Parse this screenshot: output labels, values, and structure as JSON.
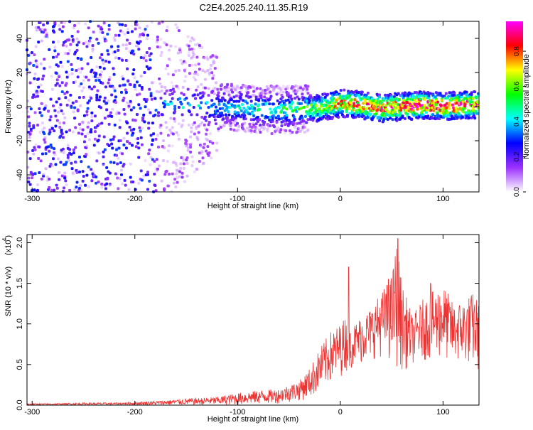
{
  "title": "C2E4.2025.240.11.35.R19",
  "chart_data": [
    {
      "type": "heatmap",
      "xlabel": "Height of straight line (km)",
      "ylabel": "Frequency (Hz)",
      "xlim": [
        -305,
        135
      ],
      "ylim": [
        -50,
        50
      ],
      "x_ticks": [
        -300,
        -200,
        -100,
        0,
        100
      ],
      "y_ticks": [
        -40,
        -20,
        0,
        20,
        40
      ],
      "colorbar": {
        "label": "Normalized spectral amplitude",
        "range": [
          0,
          0.97
        ],
        "ticks": [
          0.0,
          0.2,
          0.4,
          0.6,
          0.8
        ],
        "tick_labels": [
          "0.0",
          "0.2",
          "0.4",
          "0.6",
          "0.8"
        ],
        "colormap": [
          "#ffffff",
          "#9b30ff",
          "#0000ff",
          "#00ffff",
          "#00ff00",
          "#ffff00",
          "#ff0000",
          "#ff00ff"
        ]
      },
      "ridge_profile": {
        "x": [
          -300,
          -250,
          -200,
          -150,
          -100,
          -60,
          -20,
          0,
          20,
          40,
          60,
          80,
          100,
          120,
          135
        ],
        "center_freq": [
          0,
          0,
          0,
          1,
          -1,
          -2,
          -1,
          2,
          1,
          -1,
          0,
          1,
          0,
          1,
          1
        ],
        "peak_amplitude": [
          0.15,
          0.2,
          0.25,
          0.3,
          0.35,
          0.45,
          0.55,
          0.75,
          0.8,
          0.8,
          0.85,
          0.9,
          0.85,
          0.85,
          0.8
        ]
      }
    },
    {
      "type": "line",
      "xlabel": "Height of straight line (km)",
      "ylabel": "SNR (10 * v/v)",
      "y_multiplier": "(x10^4)",
      "xlim": [
        -305,
        135
      ],
      "ylim": [
        0,
        2.1
      ],
      "x_ticks": [
        -300,
        -200,
        -100,
        0,
        100
      ],
      "y_ticks": [
        0.0,
        0.5,
        1.0,
        1.5,
        2.0
      ],
      "y_tick_labels": [
        "0.0",
        "0.5",
        "1.0",
        "1.5",
        "2.0"
      ],
      "series": [
        {
          "color": "#ee3333",
          "x": [
            -305,
            -280,
            -250,
            -220,
            -200,
            -180,
            -150,
            -120,
            -100,
            -80,
            -60,
            -40,
            -30,
            -20,
            -10,
            0,
            5,
            10,
            20,
            30,
            40,
            50,
            55,
            60,
            70,
            80,
            90,
            100,
            110,
            120,
            130,
            135
          ],
          "envelope_low": [
            0,
            0,
            0,
            0,
            0,
            0,
            0,
            0,
            0,
            0.01,
            0.02,
            0.05,
            0.08,
            0.15,
            0.25,
            0.35,
            0.4,
            0.45,
            0.5,
            0.55,
            0.6,
            0.5,
            0.45,
            0.4,
            0.5,
            0.55,
            0.55,
            0.55,
            0.5,
            0.5,
            0.45,
            0.4
          ],
          "envelope_high": [
            0.02,
            0.02,
            0.03,
            0.03,
            0.04,
            0.05,
            0.08,
            0.1,
            0.15,
            0.18,
            0.2,
            0.3,
            0.45,
            0.7,
            0.9,
            1.0,
            1.1,
            0.95,
            1.1,
            1.2,
            1.4,
            1.6,
            2.05,
            1.5,
            1.1,
            1.3,
            1.4,
            1.5,
            1.25,
            1.3,
            1.4,
            1.25
          ],
          "spikes": [
            {
              "x": 8,
              "y": 1.7
            },
            {
              "x": 47,
              "y": 1.55
            },
            {
              "x": 56,
              "y": 2.05
            },
            {
              "x": 88,
              "y": 1.5
            }
          ]
        }
      ]
    }
  ]
}
